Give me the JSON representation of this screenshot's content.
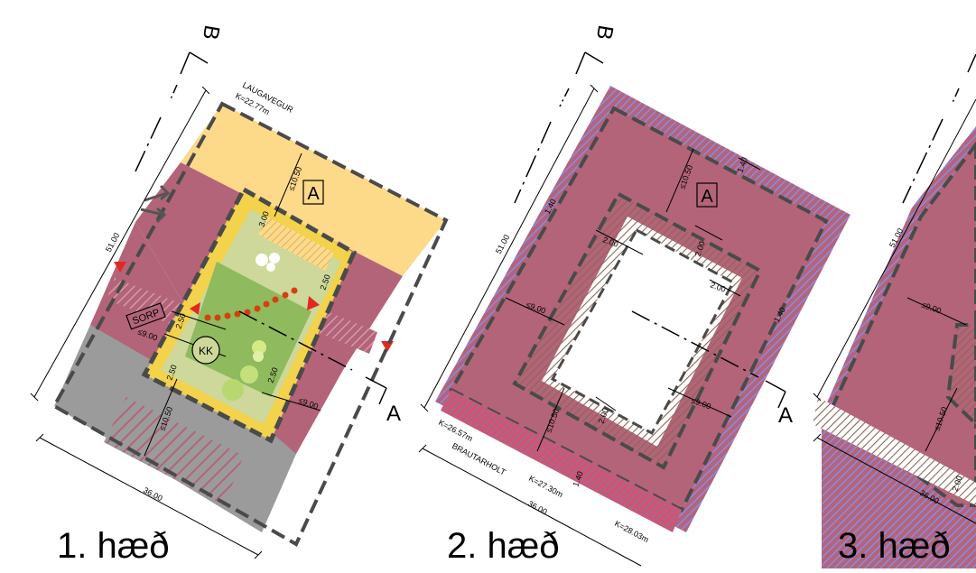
{
  "panels": [
    {
      "title": "1. hæð",
      "street_top": "LAUGAVEGUR",
      "street_top_level": "K=22.77m",
      "section_letter_b": "B",
      "section_letter_a": "A",
      "zone_label": "A",
      "sorp_label": "SORP",
      "kk_label": "KK",
      "dims": {
        "length": "51.00",
        "width": "36.00",
        "front_depth": "≤10.50",
        "back_depth": "≤10.50",
        "inner_top": "3.00",
        "inner_right": "2.50",
        "inner_left": "2.50",
        "inner_bottom_left": "2.50",
        "inner_bottom_right": "2.50",
        "side_left": "≤9.00",
        "side_right": "≤9.00"
      }
    },
    {
      "title": "2. hæð",
      "street_bottom": "BRAUTARHOLT",
      "level_left": "K=26.57m",
      "level_mid": "K=27.30m",
      "level_right": "K=28.03m",
      "section_letter_b": "B",
      "section_letter_a": "A",
      "zone_label": "A",
      "dims": {
        "length": "51.00",
        "width": "36.00",
        "front_depth": "≤10.50",
        "back_depth": "≤10.50",
        "side_left": "≤9.00",
        "side_right": "≤9.00",
        "court_top_left": "2.00",
        "court_top_right": "2.00",
        "court_right": "2.00",
        "court_bottom": "2.00",
        "edge_top": "1.40",
        "edge_left": "1.40",
        "edge_right": "1.40",
        "edge_bottom": "1.40"
      }
    },
    {
      "title": "3. hæð",
      "dims": {
        "length": "51.00",
        "width": "36.00",
        "side_left": "≤9.00",
        "back_depth": "≤10.50",
        "edge_bottom": "2.00"
      }
    }
  ],
  "colors": {
    "building": "#b36479",
    "front_yard": "#fdd98a",
    "parking": "#9b9b9b",
    "courtyard_green": "#8fba5e",
    "courtyard_light": "#cdd89a",
    "courtyard_border": "#f3d24c",
    "edge_hatch": "#7a7ad8",
    "pink_hatch": "#e24f86",
    "brown_hatch": "#8b6655",
    "arrow_red": "#e12a1f",
    "dot_orange": "#d6400f",
    "outline": "#4a4a4a"
  }
}
